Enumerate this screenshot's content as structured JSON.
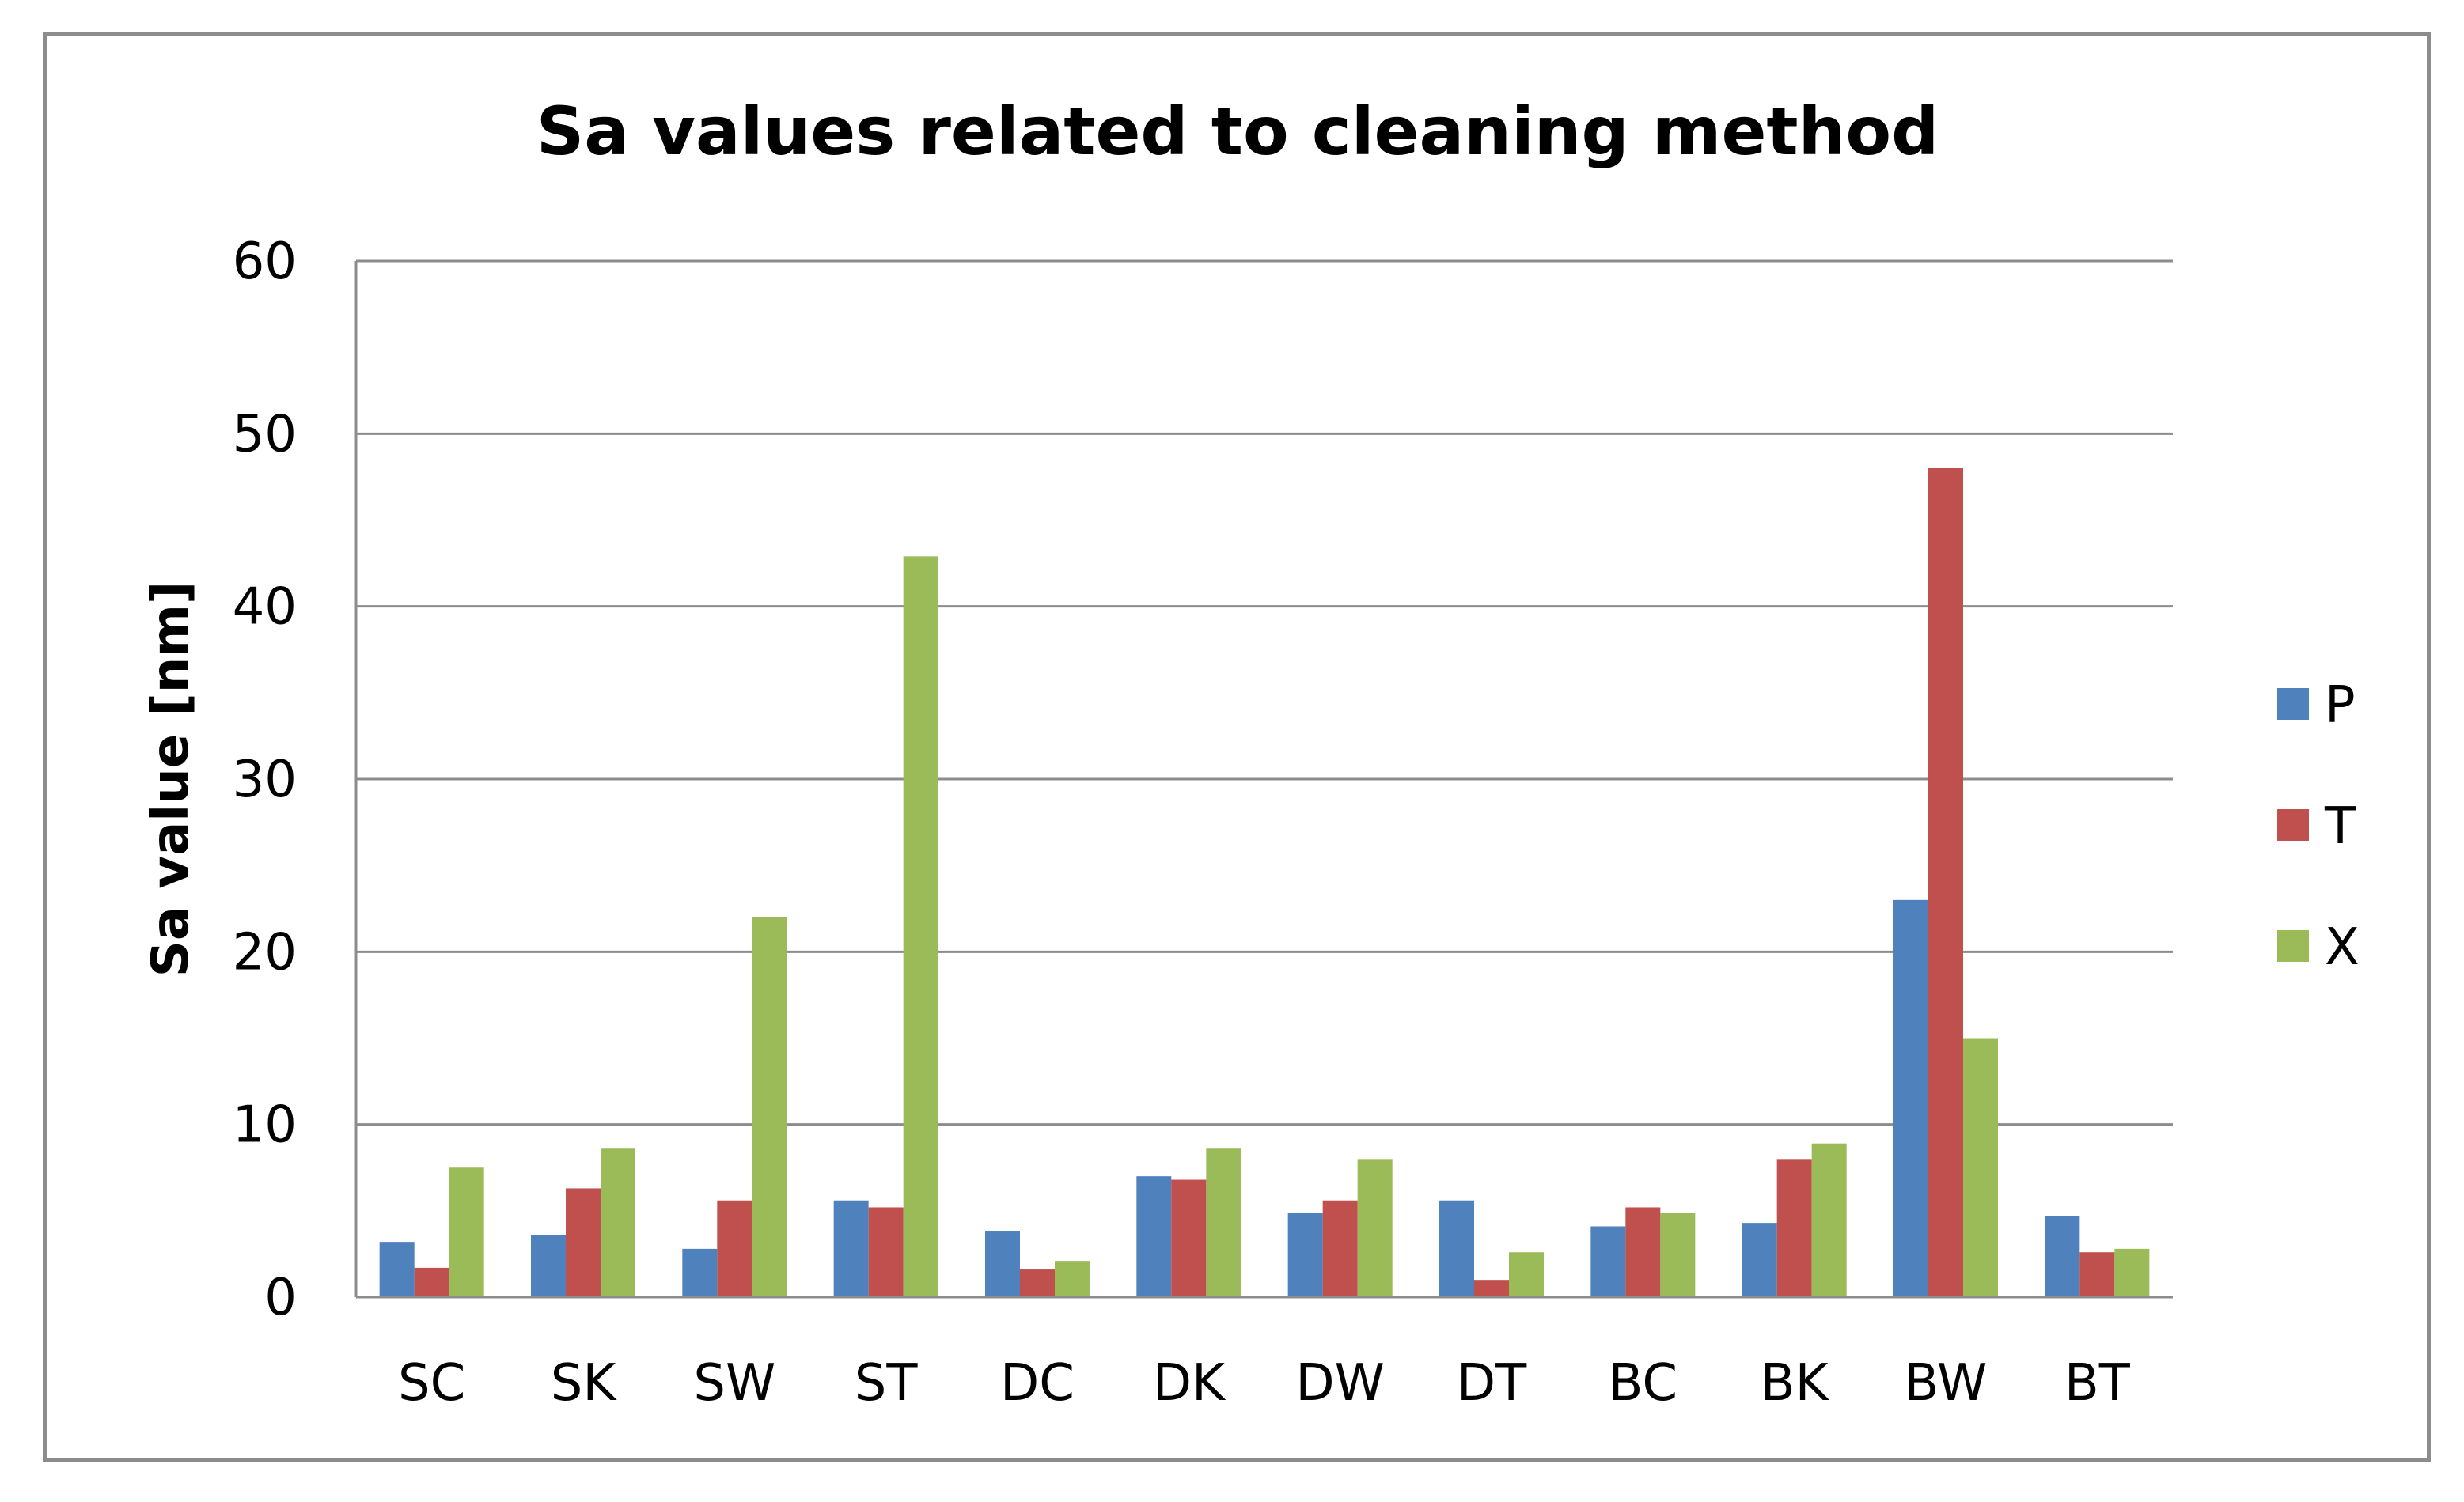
{
  "chart_data": {
    "type": "bar",
    "title": "Sa values related to cleaning method",
    "xlabel": "",
    "ylabel": "Sa value [nm]",
    "ylim": [
      0,
      60
    ],
    "yticks": [
      0,
      10,
      20,
      30,
      40,
      50,
      60
    ],
    "grid": true,
    "legend_position": "right",
    "categories": [
      "SC",
      "SK",
      "SW",
      "ST",
      "DC",
      "DK",
      "DW",
      "DT",
      "BC",
      "BK",
      "BW",
      "BT"
    ],
    "series": [
      {
        "name": "P",
        "color": "#4f81bd",
        "values": [
          3.2,
          3.6,
          2.8,
          5.6,
          3.8,
          7.0,
          4.9,
          5.6,
          4.1,
          4.3,
          23.0,
          4.7
        ]
      },
      {
        "name": "T",
        "color": "#c0504d",
        "values": [
          1.7,
          6.3,
          5.6,
          5.2,
          1.6,
          6.8,
          5.6,
          1.0,
          5.2,
          8.0,
          48.0,
          2.6
        ]
      },
      {
        "name": "X",
        "color": "#9bbb59",
        "values": [
          7.5,
          8.6,
          22.0,
          42.9,
          2.1,
          8.6,
          8.0,
          2.6,
          4.9,
          8.9,
          15.0,
          2.8
        ]
      }
    ]
  }
}
